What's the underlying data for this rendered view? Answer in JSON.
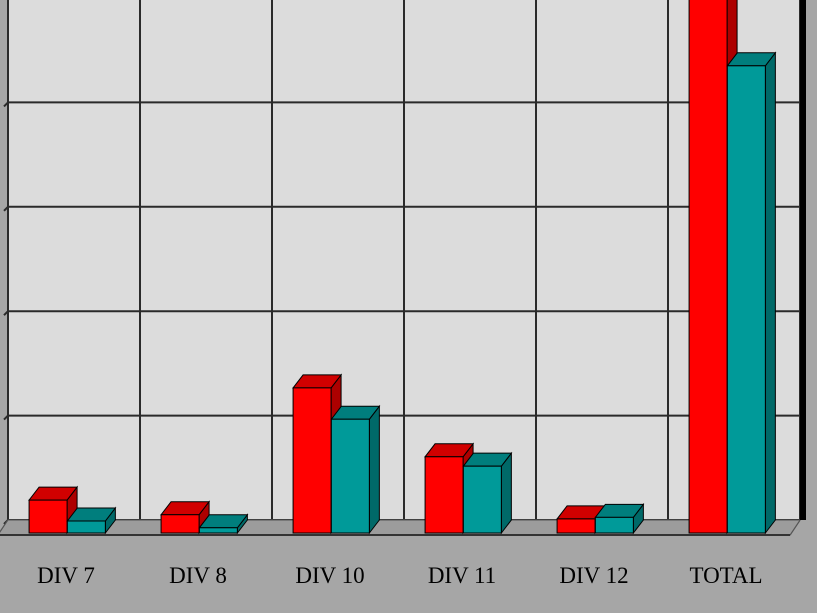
{
  "colors": {
    "plot_bg": "#dcdcdc",
    "frame_bg": "#a6a6a6",
    "floor": "#9c9c9c",
    "grid": "#2a2a2a",
    "series_1": "#ff0000",
    "series_2": "#009a99"
  },
  "chart_data": {
    "type": "bar",
    "style": "3d-clustered",
    "title": "",
    "xlabel": "",
    "ylabel": "",
    "categories": [
      "DIV 7",
      "DIV 8",
      "DIV 10",
      "DIV 11",
      "DIV 12",
      "TOTAL"
    ],
    "series": [
      {
        "values": [
          6.3,
          3.5,
          27.8,
          14.6,
          2.7,
          107.5
        ]
      },
      {
        "values": [
          2.3,
          1.0,
          21.8,
          12.8,
          3.0,
          89.5
        ]
      }
    ],
    "ylim": [
      0,
      100
    ],
    "y_gridlines": [
      0,
      20,
      40,
      60,
      80,
      100
    ],
    "grid": true,
    "legend": "none",
    "tick_labels_y_visible": false
  }
}
